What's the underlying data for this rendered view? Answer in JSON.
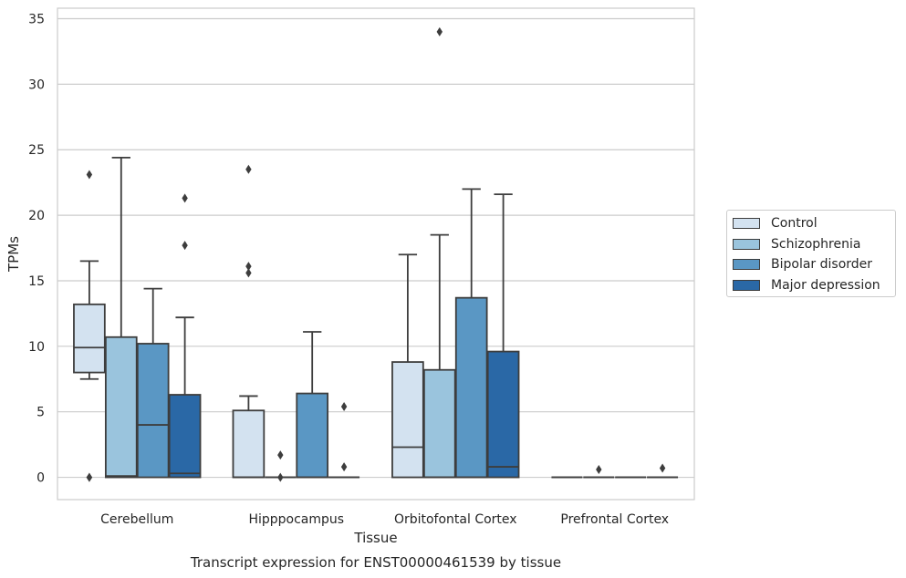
{
  "chart_data": {
    "type": "boxplot",
    "title": "Transcript expression for ENST00000461539 by tissue",
    "xlabel": "Tissue",
    "ylabel": "TPMs",
    "ylim": [
      -1.7,
      35.8
    ],
    "yticks": [
      0,
      5,
      10,
      15,
      20,
      25,
      30,
      35
    ],
    "grid": "horizontal",
    "legend_position": "right",
    "categories": [
      "Cerebellum",
      "Hipppocampus",
      "Orbitofontal Cortex",
      "Prefrontal Cortex"
    ],
    "series": [
      {
        "name": "Control",
        "color": "#d3e2f0",
        "boxes": [
          {
            "whislo": 7.5,
            "q1": 8.0,
            "med": 9.9,
            "q3": 13.2,
            "whishi": 16.5,
            "fliers": [
              0,
              0,
              23.1
            ]
          },
          {
            "whislo": 0,
            "q1": 0,
            "med": 0,
            "q3": 5.1,
            "whishi": 6.2,
            "fliers": [
              15.6,
              16.1,
              23.5
            ]
          },
          {
            "whislo": 0,
            "q1": 0,
            "med": 2.3,
            "q3": 8.8,
            "whishi": 17.0,
            "fliers": []
          },
          {
            "whislo": 0,
            "q1": 0,
            "med": 0,
            "q3": 0,
            "whishi": 0,
            "fliers": []
          }
        ]
      },
      {
        "name": "Schizophrenia",
        "color": "#9ac4dd",
        "boxes": [
          {
            "whislo": 0,
            "q1": 0,
            "med": 0.1,
            "q3": 10.7,
            "whishi": 24.4,
            "fliers": []
          },
          {
            "whislo": 0,
            "q1": 0,
            "med": 0,
            "q3": 0,
            "whishi": 0,
            "fliers": [
              0,
              1.7
            ]
          },
          {
            "whislo": 0,
            "q1": 0,
            "med": 0,
            "q3": 8.2,
            "whishi": 18.5,
            "fliers": [
              34.0
            ]
          },
          {
            "whislo": 0,
            "q1": 0,
            "med": 0,
            "q3": 0,
            "whishi": 0,
            "fliers": [
              0.6
            ]
          }
        ]
      },
      {
        "name": "Bipolar disorder",
        "color": "#5a97c4",
        "boxes": [
          {
            "whislo": 0,
            "q1": 0,
            "med": 4.0,
            "q3": 10.2,
            "whishi": 14.4,
            "fliers": []
          },
          {
            "whislo": 0,
            "q1": 0,
            "med": 0,
            "q3": 6.4,
            "whishi": 11.1,
            "fliers": []
          },
          {
            "whislo": 0,
            "q1": 0,
            "med": 0,
            "q3": 13.7,
            "whishi": 22.0,
            "fliers": []
          },
          {
            "whislo": 0,
            "q1": 0,
            "med": 0,
            "q3": 0,
            "whishi": 0,
            "fliers": []
          }
        ]
      },
      {
        "name": "Major depression",
        "color": "#2a68a6",
        "boxes": [
          {
            "whislo": 0,
            "q1": 0,
            "med": 0.3,
            "q3": 6.3,
            "whishi": 12.2,
            "fliers": [
              17.7,
              21.3
            ]
          },
          {
            "whislo": 0,
            "q1": 0,
            "med": 0,
            "q3": 0,
            "whishi": 0,
            "fliers": [
              0.8,
              5.4
            ]
          },
          {
            "whislo": 0,
            "q1": 0,
            "med": 0.8,
            "q3": 9.6,
            "whishi": 21.6,
            "fliers": []
          },
          {
            "whislo": 0,
            "q1": 0,
            "med": 0,
            "q3": 0,
            "whishi": 0,
            "fliers": [
              0.7
            ]
          }
        ]
      }
    ]
  }
}
